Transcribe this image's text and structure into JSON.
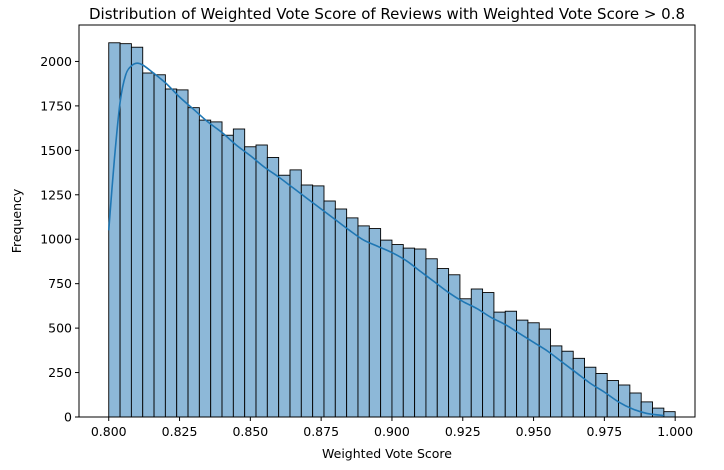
{
  "chart_data": {
    "type": "histogram",
    "title": "Distribution of Weighted Vote Score of Reviews with Weighted Vote Score > 0.8",
    "xlabel": "Weighted Vote Score",
    "ylabel": "Frequency",
    "xlim": [
      0.7895,
      1.007
    ],
    "ylim": [
      0,
      2205
    ],
    "bin_start": 0.8,
    "bin_width": 0.004,
    "frequencies": [
      2105,
      2100,
      2080,
      1935,
      1925,
      1845,
      1840,
      1740,
      1670,
      1660,
      1585,
      1620,
      1520,
      1530,
      1460,
      1360,
      1390,
      1305,
      1300,
      1215,
      1170,
      1120,
      1075,
      1060,
      995,
      970,
      950,
      945,
      890,
      835,
      800,
      665,
      720,
      700,
      590,
      595,
      545,
      530,
      495,
      400,
      370,
      330,
      280,
      245,
      205,
      180,
      135,
      85,
      50,
      30
    ],
    "kde": {
      "x": [
        0.8,
        0.802,
        0.804,
        0.806,
        0.808,
        0.81,
        0.812,
        0.815,
        0.82,
        0.825,
        0.83,
        0.835,
        0.84,
        0.845,
        0.85,
        0.855,
        0.86,
        0.865,
        0.87,
        0.875,
        0.88,
        0.885,
        0.89,
        0.895,
        0.9,
        0.905,
        0.91,
        0.915,
        0.92,
        0.925,
        0.93,
        0.935,
        0.94,
        0.945,
        0.95,
        0.955,
        0.96,
        0.965,
        0.97,
        0.975,
        0.98,
        0.985,
        0.99,
        0.996
      ],
      "y": [
        1050,
        1450,
        1770,
        1925,
        1975,
        1990,
        1980,
        1945,
        1880,
        1800,
        1730,
        1660,
        1600,
        1530,
        1470,
        1405,
        1350,
        1290,
        1230,
        1170,
        1110,
        1050,
        995,
        960,
        925,
        880,
        820,
        760,
        700,
        650,
        610,
        560,
        520,
        470,
        420,
        370,
        310,
        250,
        190,
        140,
        85,
        45,
        20,
        8
      ]
    },
    "xticks": [
      0.8,
      0.825,
      0.85,
      0.875,
      0.9,
      0.925,
      0.95,
      0.975,
      1.0
    ],
    "xtick_labels": [
      "0.800",
      "0.825",
      "0.850",
      "0.875",
      "0.900",
      "0.925",
      "0.950",
      "0.975",
      "1.000"
    ],
    "yticks": [
      0,
      250,
      500,
      750,
      1000,
      1250,
      1500,
      1750,
      2000
    ],
    "ytick_labels": [
      "0",
      "250",
      "500",
      "750",
      "1000",
      "1250",
      "1500",
      "1750",
      "2000"
    ],
    "colors": {
      "bar_fill": "#8db8d8",
      "bar_edge": "#000000",
      "kde_line": "#1f77b4",
      "axis": "#000000"
    },
    "grid": false
  }
}
